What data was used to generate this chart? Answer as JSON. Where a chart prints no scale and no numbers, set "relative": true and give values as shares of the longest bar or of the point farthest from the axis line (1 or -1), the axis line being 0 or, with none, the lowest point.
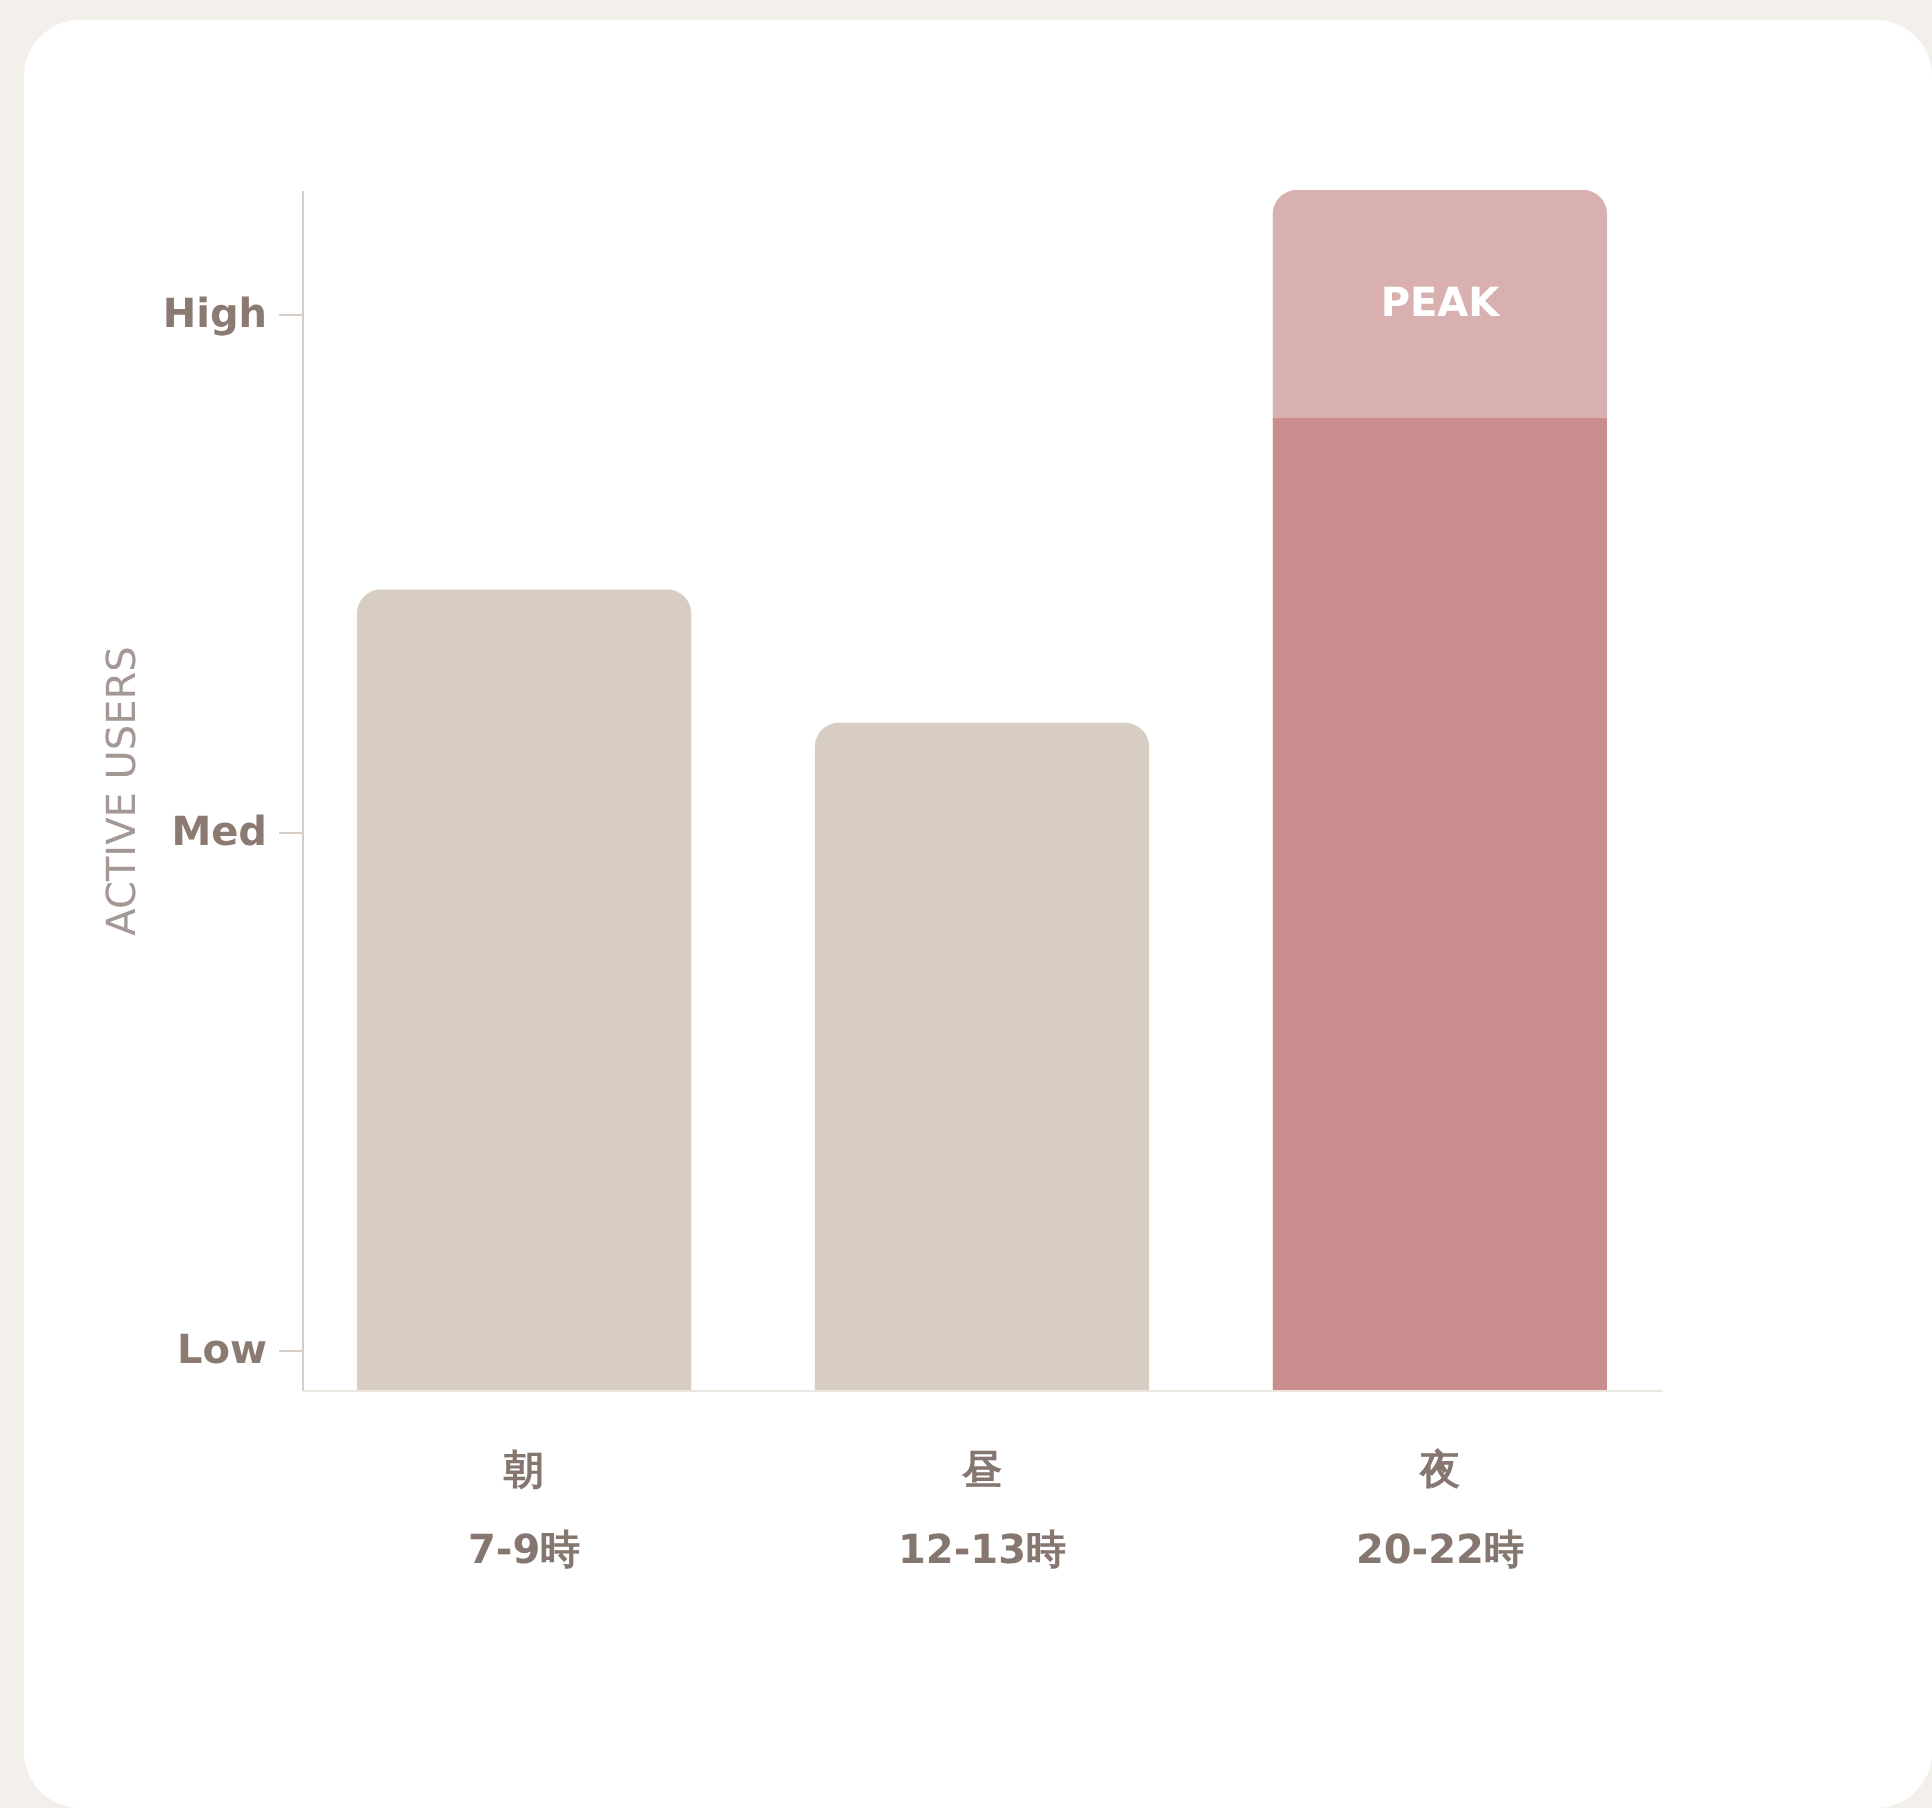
{
  "chart_data": {
    "type": "bar",
    "stacked": true,
    "relative": true,
    "ylabel": "ACTIVE USERS",
    "categories": [
      "朝\n7-9時",
      "昼\n12-13時",
      "夜\n20-22時"
    ],
    "series": [
      {
        "colors": [
          "#d7cdc3",
          "#d7cdc3",
          "#c98d8d"
        ],
        "values": [
          0.667,
          0.556,
          0.81
        ]
      },
      {
        "color": "#d9b0b0",
        "values": [
          null,
          null,
          0.19
        ]
      }
    ],
    "annotations": [
      "PEAK",
      "Low",
      "Med",
      "High"
    ]
  }
}
